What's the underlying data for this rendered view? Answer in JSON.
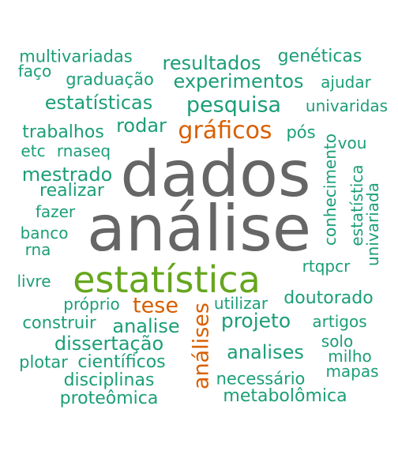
{
  "colors": {
    "teal": "#1b9e77",
    "gray": "#666666",
    "green": "#66a61e",
    "orange": "#d95f02"
  },
  "words": [
    {
      "text": "multivariadas",
      "color": "teal",
      "vertical": false
    },
    {
      "text": "faço",
      "color": "teal",
      "vertical": false
    },
    {
      "text": "resultados",
      "color": "teal",
      "vertical": false
    },
    {
      "text": "genéticas",
      "color": "teal",
      "vertical": false
    },
    {
      "text": "graduação",
      "color": "teal",
      "vertical": false
    },
    {
      "text": "experimentos",
      "color": "teal",
      "vertical": false
    },
    {
      "text": "ajudar",
      "color": "teal",
      "vertical": false
    },
    {
      "text": "estatísticas",
      "color": "teal",
      "vertical": false
    },
    {
      "text": "pesquisa",
      "color": "teal",
      "vertical": false
    },
    {
      "text": "univaridas",
      "color": "teal",
      "vertical": false
    },
    {
      "text": "trabalhos",
      "color": "teal",
      "vertical": false
    },
    {
      "text": "rodar",
      "color": "teal",
      "vertical": false
    },
    {
      "text": "gráficos",
      "color": "orange",
      "vertical": false
    },
    {
      "text": "pós",
      "color": "teal",
      "vertical": false
    },
    {
      "text": "vou",
      "color": "teal",
      "vertical": false
    },
    {
      "text": "etc",
      "color": "teal",
      "vertical": false
    },
    {
      "text": "rnaseq",
      "color": "teal",
      "vertical": false
    },
    {
      "text": "dados",
      "color": "gray",
      "vertical": false
    },
    {
      "text": "mestrado",
      "color": "teal",
      "vertical": false
    },
    {
      "text": "realizar",
      "color": "teal",
      "vertical": false
    },
    {
      "text": "fazer",
      "color": "teal",
      "vertical": false
    },
    {
      "text": "análise",
      "color": "gray",
      "vertical": false
    },
    {
      "text": "banco",
      "color": "teal",
      "vertical": false
    },
    {
      "text": "rna",
      "color": "teal",
      "vertical": false
    },
    {
      "text": "conhecimento",
      "color": "teal",
      "vertical": true
    },
    {
      "text": "estatística",
      "color": "teal",
      "vertical": true
    },
    {
      "text": "univariada",
      "color": "teal",
      "vertical": true
    },
    {
      "text": "rtqpcr",
      "color": "teal",
      "vertical": false
    },
    {
      "text": "livre",
      "color": "teal",
      "vertical": false
    },
    {
      "text": "estatística",
      "color": "green",
      "vertical": false
    },
    {
      "text": "próprio",
      "color": "teal",
      "vertical": false
    },
    {
      "text": "tese",
      "color": "orange",
      "vertical": false
    },
    {
      "text": "análises",
      "color": "orange",
      "vertical": true
    },
    {
      "text": "utilizar",
      "color": "teal",
      "vertical": false
    },
    {
      "text": "doutorado",
      "color": "teal",
      "vertical": false
    },
    {
      "text": "construir",
      "color": "teal",
      "vertical": false
    },
    {
      "text": "analise",
      "color": "teal",
      "vertical": false
    },
    {
      "text": "projeto",
      "color": "teal",
      "vertical": false
    },
    {
      "text": "artigos",
      "color": "teal",
      "vertical": false
    },
    {
      "text": "dissertação",
      "color": "teal",
      "vertical": false
    },
    {
      "text": "analises",
      "color": "teal",
      "vertical": false
    },
    {
      "text": "solo",
      "color": "teal",
      "vertical": false
    },
    {
      "text": "plotar",
      "color": "teal",
      "vertical": false
    },
    {
      "text": "científicos",
      "color": "teal",
      "vertical": false
    },
    {
      "text": "milho",
      "color": "teal",
      "vertical": false
    },
    {
      "text": "mapas",
      "color": "teal",
      "vertical": false
    },
    {
      "text": "disciplinas",
      "color": "teal",
      "vertical": false
    },
    {
      "text": "necessário",
      "color": "teal",
      "vertical": false
    },
    {
      "text": "proteômica",
      "color": "teal",
      "vertical": false
    },
    {
      "text": "metabolômica",
      "color": "teal",
      "vertical": false
    }
  ]
}
